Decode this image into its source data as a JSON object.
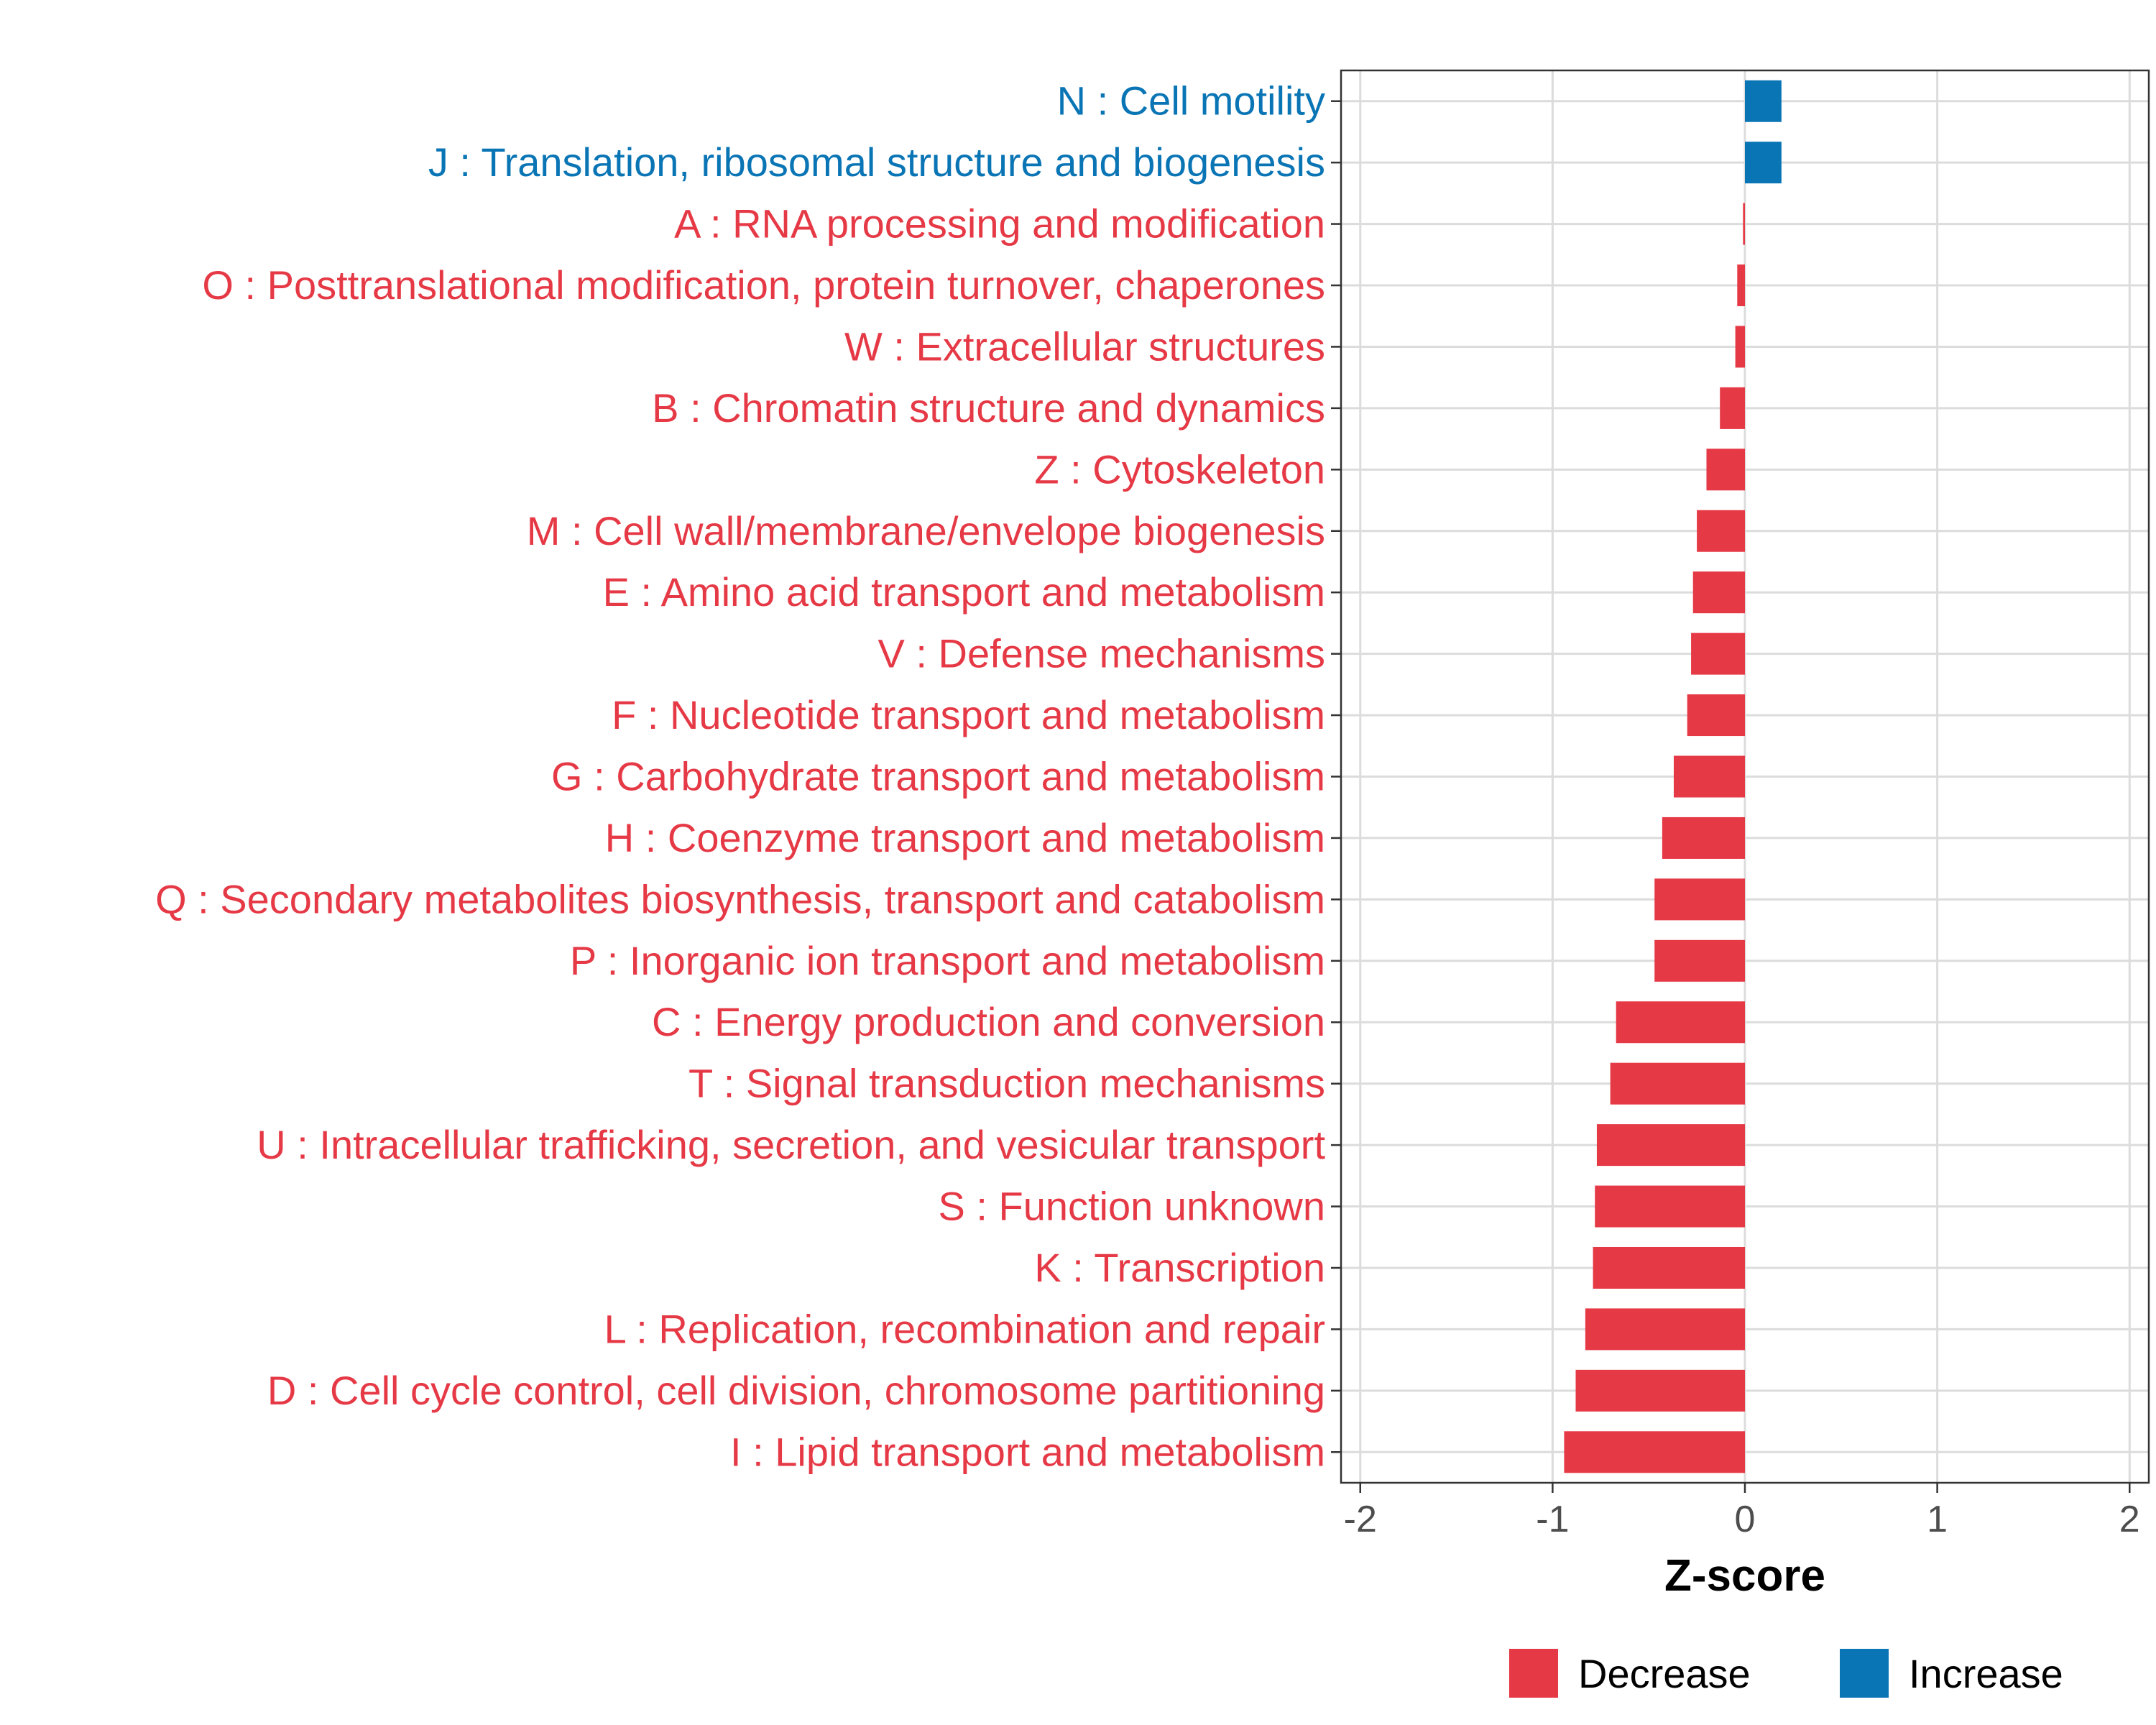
{
  "chart_data": {
    "type": "bar",
    "orientation": "horizontal",
    "title": "",
    "xlabel": "Z-score",
    "ylabel": "",
    "xlim": [
      -2.1,
      2.1
    ],
    "xticks": [
      -2,
      -1,
      0,
      1,
      2
    ],
    "xtick_labels": [
      "-2",
      "-1",
      "0",
      "1",
      "2"
    ],
    "grid": true,
    "legend_position": "bottom",
    "colors": {
      "Decrease": "#E63946",
      "Increase": "#0A75B5"
    },
    "legend": [
      {
        "key": "Decrease",
        "label": "Decrease"
      },
      {
        "key": "Increase",
        "label": "Increase"
      }
    ],
    "categories": [
      "N : Cell motility",
      "J : Translation, ribosomal structure and biogenesis",
      "A : RNA processing and modification",
      "O : Posttranslational modification, protein turnover, chaperones",
      "W : Extracellular structures",
      "B : Chromatin structure and dynamics",
      "Z : Cytoskeleton",
      "M : Cell wall/membrane/envelope biogenesis",
      "E : Amino acid transport and metabolism",
      "V : Defense mechanisms",
      "F : Nucleotide transport and metabolism",
      "G : Carbohydrate transport and metabolism",
      "H : Coenzyme transport and metabolism",
      "Q : Secondary metabolites biosynthesis, transport and catabolism",
      "P : Inorganic ion transport and metabolism",
      "C : Energy production and conversion",
      "T : Signal transduction mechanisms",
      "U : Intracellular trafficking, secretion, and vesicular transport",
      "S : Function unknown",
      "K : Transcription",
      "L : Replication, recombination and repair",
      "D : Cell cycle control, cell division, chromosome partitioning",
      "I : Lipid transport and metabolism"
    ],
    "values": [
      0.19,
      0.19,
      -0.01,
      -0.04,
      -0.05,
      -0.13,
      -0.2,
      -0.25,
      -0.27,
      -0.28,
      -0.3,
      -0.37,
      -0.43,
      -0.47,
      -0.47,
      -0.67,
      -0.7,
      -0.77,
      -0.78,
      -0.79,
      -0.83,
      -0.88,
      -0.94
    ],
    "groups": [
      "Increase",
      "Increase",
      "Decrease",
      "Decrease",
      "Decrease",
      "Decrease",
      "Decrease",
      "Decrease",
      "Decrease",
      "Decrease",
      "Decrease",
      "Decrease",
      "Decrease",
      "Decrease",
      "Decrease",
      "Decrease",
      "Decrease",
      "Decrease",
      "Decrease",
      "Decrease",
      "Decrease",
      "Decrease",
      "Decrease"
    ]
  }
}
